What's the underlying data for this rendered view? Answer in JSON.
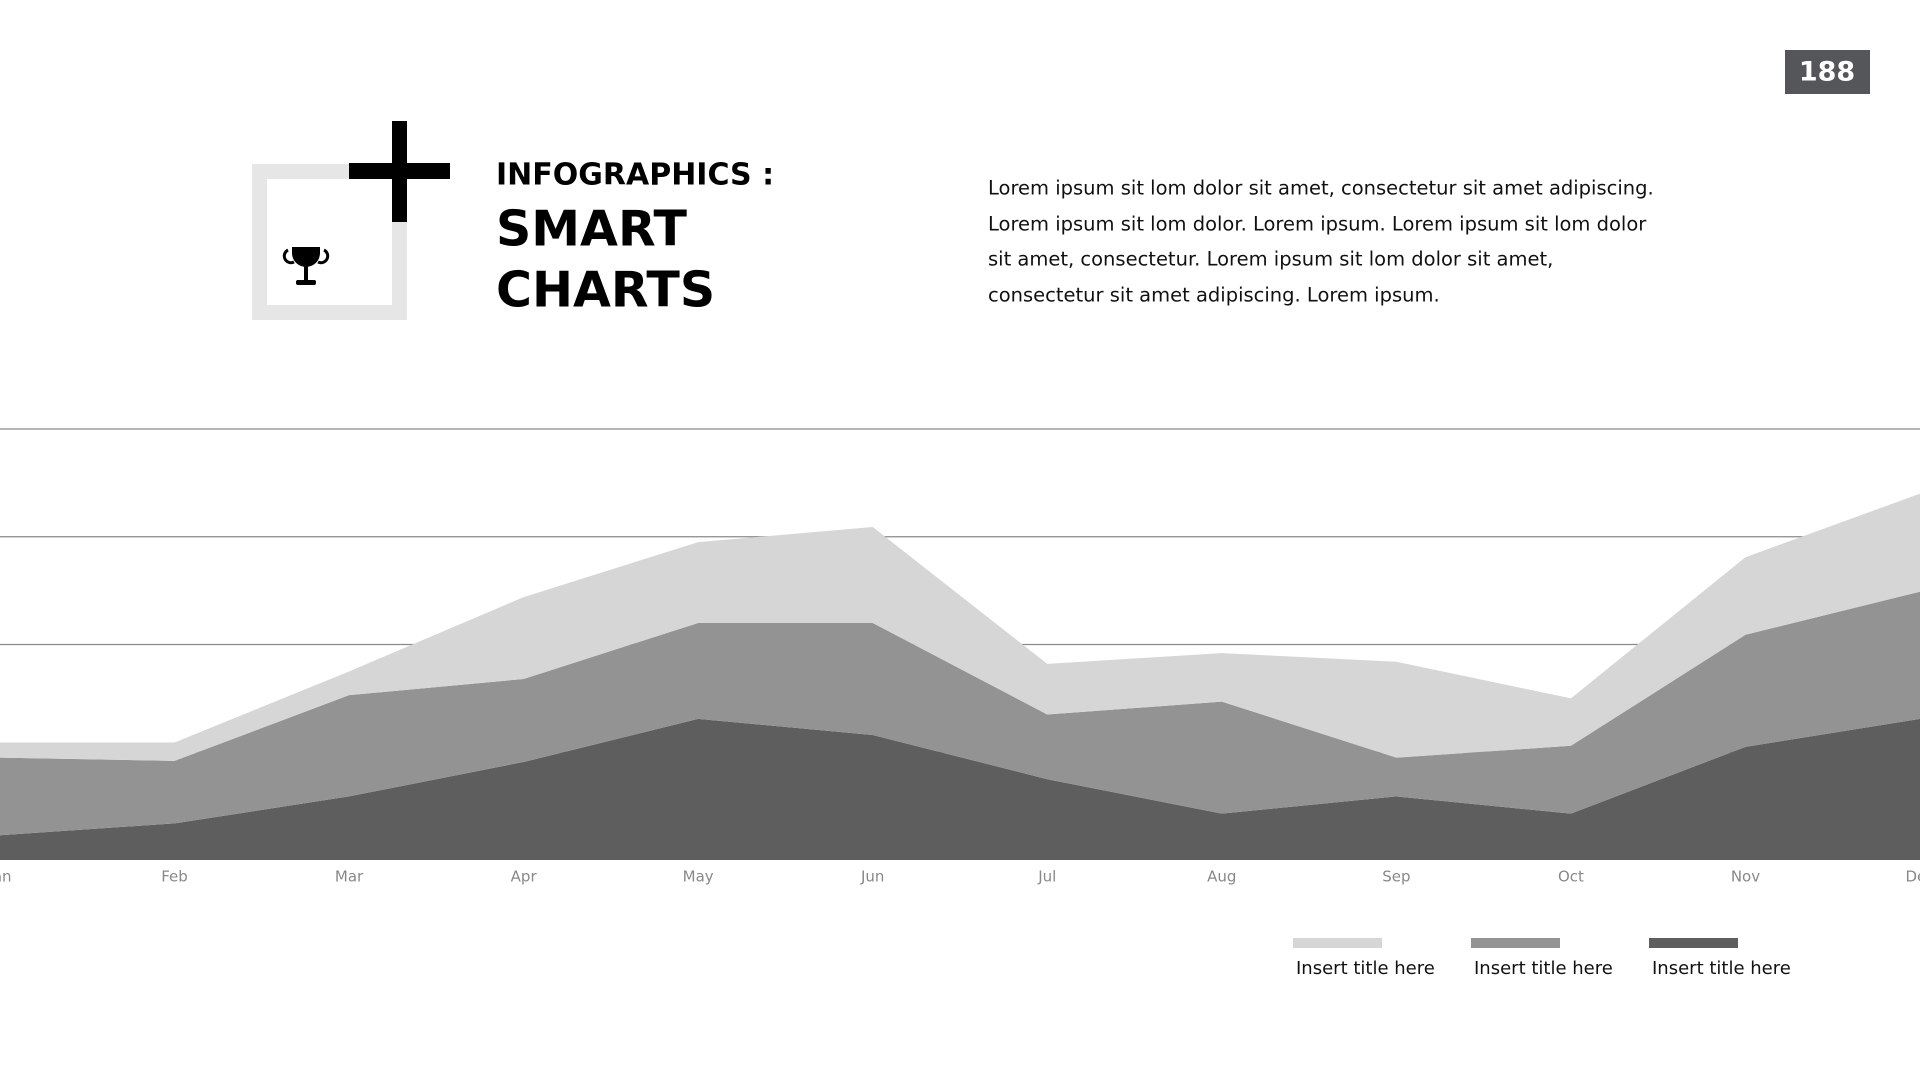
{
  "header": {
    "page_number": "188",
    "title_lines": [
      "INFOGRAPHICS :",
      "SMART",
      "CHARTS"
    ],
    "paragraph": [
      "Lorem ipsum sit lom dolor sit amet, consectetur sit amet adipiscing.",
      "Lorem ipsum sit lom dolor. Lorem ipsum. Lorem ipsum sit lom dolor",
      "sit amet, consectetur. Lorem ipsum sit lom dolor sit amet,",
      "consectetur sit amet adipiscing. Lorem ipsum."
    ]
  },
  "chart_data": {
    "type": "area",
    "stacked": true,
    "grid": true,
    "categories": [
      "Jan",
      "Feb",
      "Mar",
      "Apr",
      "May",
      "Jun",
      "Jul",
      "Aug",
      "Sep",
      "Oct",
      "Nov",
      "Dec"
    ],
    "series": [
      {
        "name": "Insert title here",
        "color": "#d6d6d6",
        "values": [
          0.14,
          0.17,
          0.22,
          0.76,
          0.75,
          0.89,
          0.47,
          0.45,
          0.89,
          0.44,
          0.72,
          0.91
        ]
      },
      {
        "name": "Insert title here",
        "color": "#939393",
        "values": [
          0.72,
          0.58,
          0.94,
          0.77,
          0.89,
          1.04,
          0.6,
          1.04,
          0.36,
          0.63,
          1.04,
          1.18
        ]
      },
      {
        "name": "Insert title here",
        "color": "#5e5e5e",
        "values": [
          0.23,
          0.34,
          0.59,
          0.91,
          1.31,
          1.16,
          0.75,
          0.43,
          0.59,
          0.43,
          1.05,
          1.31
        ]
      }
    ],
    "ylim": [
      0,
      4
    ],
    "yticks": [
      1,
      2,
      3,
      4
    ]
  }
}
